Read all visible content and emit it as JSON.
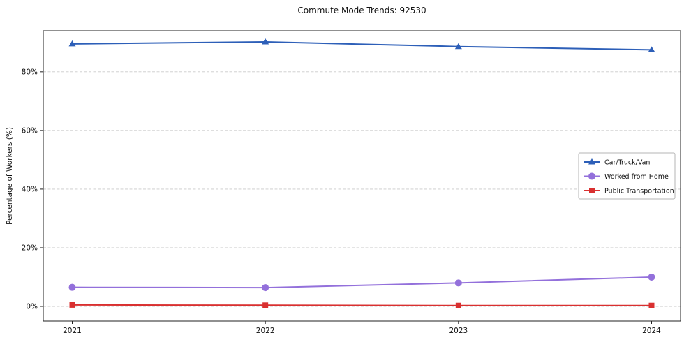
{
  "chart_data": {
    "type": "line",
    "title": "Commute Mode Trends: 92530",
    "xlabel": "",
    "ylabel": "Percentage of Workers (%)",
    "categories": [
      "2021",
      "2022",
      "2023",
      "2024"
    ],
    "x": [
      2021,
      2022,
      2023,
      2024
    ],
    "xlim": [
      2020.85,
      2024.15
    ],
    "ylim": [
      -5,
      94
    ],
    "yticks": [
      0,
      20,
      40,
      60,
      80
    ],
    "ytick_labels": [
      "0%",
      "20%",
      "40%",
      "60%",
      "80%"
    ],
    "grid": "horizontal-dashed",
    "legend_position": "center-right",
    "series": [
      {
        "name": "Car/Truck/Van",
        "color": "#2d5fb8",
        "marker": "triangle",
        "values": [
          89.5,
          90.2,
          88.6,
          87.5
        ]
      },
      {
        "name": "Worked from Home",
        "color": "#9370db",
        "marker": "circle",
        "values": [
          6.5,
          6.4,
          8.0,
          10.0
        ]
      },
      {
        "name": "Public Transportation",
        "color": "#d93030",
        "marker": "square",
        "values": [
          0.5,
          0.4,
          0.3,
          0.3
        ]
      }
    ]
  }
}
